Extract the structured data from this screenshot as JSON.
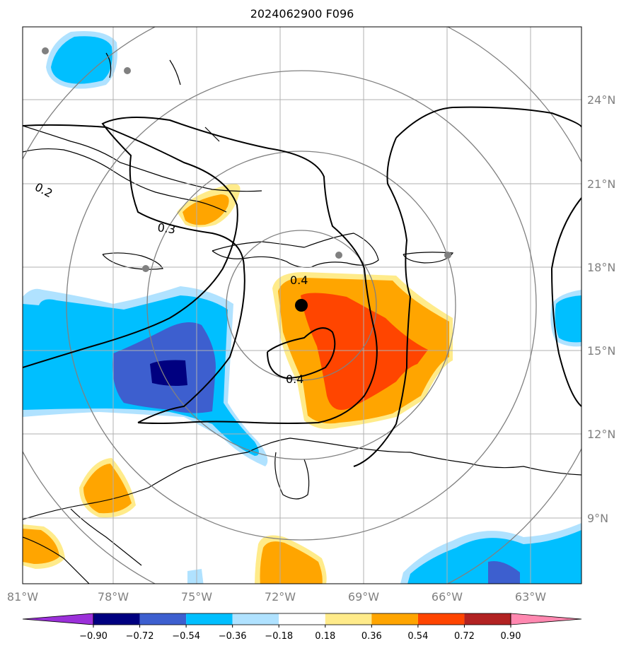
{
  "title": "2024062900 F096",
  "map": {
    "lon_range": [
      -81,
      -61
    ],
    "lat_range": [
      7,
      27
    ],
    "lon_ticks": [
      "81°W",
      "78°W",
      "75°W",
      "72°W",
      "69°W",
      "66°W",
      "63°W"
    ],
    "lat_ticks": [
      "24°N",
      "21°N",
      "18°N",
      "15°N",
      "12°N",
      "9°N"
    ],
    "grid": true,
    "storm_center": {
      "lon": -71.1,
      "lat": 16.6
    },
    "contour_labels": [
      "0.2",
      "0.3",
      "0.4",
      "0.4"
    ],
    "range_rings": 4
  },
  "colorbar": {
    "labels": [
      "−0.90",
      "−0.72",
      "−0.54",
      "−0.36",
      "−0.18",
      "0.18",
      "0.36",
      "0.54",
      "0.72",
      "0.90"
    ],
    "colors": [
      "#9b30d9",
      "#000080",
      "#3d5fcf",
      "#00bfff",
      "#b0e2ff",
      "#ffffff",
      "#ffeb8a",
      "#ffa500",
      "#ff4500",
      "#b22222",
      "#ff88b0"
    ]
  }
}
